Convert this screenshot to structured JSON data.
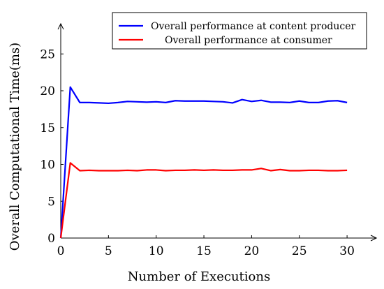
{
  "chart_data": {
    "type": "line",
    "xlabel": "Number of Executions",
    "ylabel": "Overall Computational Time(ms)",
    "xlim": [
      0,
      33
    ],
    "ylim": [
      0,
      29
    ],
    "xticks": [
      0,
      5,
      10,
      15,
      20,
      25,
      30
    ],
    "yticks": [
      0,
      5,
      10,
      15,
      20,
      25
    ],
    "grid": false,
    "legend_position": "top-right",
    "series": [
      {
        "name": "Overall performance at content producer",
        "color": "#0000ff",
        "x": [
          0,
          1,
          2,
          3,
          4,
          5,
          6,
          7,
          8,
          9,
          10,
          11,
          12,
          13,
          14,
          15,
          16,
          17,
          18,
          19,
          20,
          21,
          22,
          23,
          24,
          25,
          26,
          27,
          28,
          29,
          30
        ],
        "y": [
          0,
          20.5,
          18.4,
          18.4,
          18.35,
          18.3,
          18.4,
          18.55,
          18.5,
          18.45,
          18.5,
          18.4,
          18.65,
          18.6,
          18.6,
          18.6,
          18.55,
          18.5,
          18.35,
          18.8,
          18.55,
          18.7,
          18.45,
          18.45,
          18.4,
          18.6,
          18.4,
          18.4,
          18.6,
          18.65,
          18.4
        ]
      },
      {
        "name": "Overall performance at consumer",
        "color": "#ff0000",
        "x": [
          0,
          1,
          2,
          3,
          4,
          5,
          6,
          7,
          8,
          9,
          10,
          11,
          12,
          13,
          14,
          15,
          16,
          17,
          18,
          19,
          20,
          21,
          22,
          23,
          24,
          25,
          26,
          27,
          28,
          29,
          30
        ],
        "y": [
          0,
          10.2,
          9.15,
          9.2,
          9.15,
          9.15,
          9.15,
          9.2,
          9.15,
          9.25,
          9.25,
          9.15,
          9.2,
          9.2,
          9.25,
          9.2,
          9.25,
          9.2,
          9.2,
          9.25,
          9.25,
          9.45,
          9.15,
          9.3,
          9.15,
          9.15,
          9.2,
          9.2,
          9.15,
          9.15,
          9.2
        ]
      }
    ]
  }
}
